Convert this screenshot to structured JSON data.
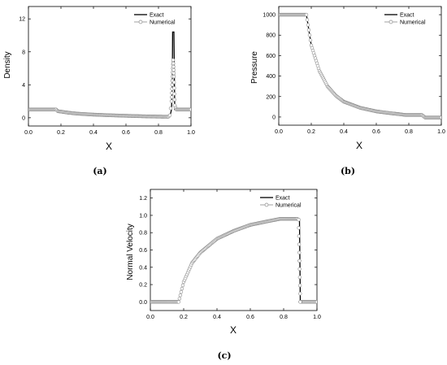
{
  "chart_data": [
    {
      "id": "a",
      "type": "line",
      "caption": "(a)",
      "xlabel": "X",
      "ylabel": "Density",
      "xlim": [
        0.0,
        1.0
      ],
      "ylim": [
        -1,
        13.5
      ],
      "xticks": [
        0.0,
        0.2,
        0.4,
        0.6,
        0.8,
        1.0
      ],
      "xtick_labels": [
        "0.0",
        "0.2",
        "0.4",
        "0.6",
        "0.8",
        "1.0"
      ],
      "yticks": [
        0,
        4,
        8,
        12
      ],
      "ytick_labels": [
        "0",
        "4",
        "8",
        "12"
      ],
      "legend_position": "top-right",
      "series": [
        {
          "name": "Exact",
          "style": "line",
          "x": [
            0.0,
            0.17,
            0.18,
            0.3,
            0.5,
            0.7,
            0.86,
            0.87,
            0.88,
            0.885,
            0.887,
            0.895,
            0.9,
            0.91,
            1.0
          ],
          "y": [
            1.0,
            1.0,
            0.8,
            0.5,
            0.3,
            0.18,
            0.12,
            0.12,
            1.0,
            4.0,
            10.4,
            10.4,
            1.0,
            1.0,
            1.0
          ]
        },
        {
          "name": "Numerical",
          "style": "circles",
          "x": [
            0.0,
            0.17,
            0.18,
            0.25,
            0.3,
            0.4,
            0.5,
            0.6,
            0.7,
            0.8,
            0.86,
            0.87,
            0.88,
            0.89,
            0.895,
            0.9,
            0.91,
            1.0
          ],
          "y": [
            1.0,
            1.0,
            0.8,
            0.6,
            0.5,
            0.38,
            0.3,
            0.24,
            0.18,
            0.14,
            0.12,
            0.3,
            2.0,
            7.0,
            5.0,
            1.5,
            1.0,
            1.0
          ]
        }
      ]
    },
    {
      "id": "b",
      "type": "line",
      "caption": "(b)",
      "xlabel": "X",
      "ylabel": "Pressure",
      "xlim": [
        0.0,
        1.0
      ],
      "ylim": [
        -80,
        1080
      ],
      "xticks": [
        0.0,
        0.2,
        0.4,
        0.6,
        0.8,
        1.0
      ],
      "xtick_labels": [
        "0.0",
        "0.2",
        "0.4",
        "0.6",
        "0.8",
        "1.0"
      ],
      "yticks": [
        0,
        200,
        400,
        600,
        800,
        1000
      ],
      "ytick_labels": [
        "0",
        "200",
        "400",
        "600",
        "800",
        "1000"
      ],
      "legend_position": "top-right",
      "series": [
        {
          "name": "Exact",
          "style": "line",
          "x": [
            0.0,
            0.17,
            0.2,
            0.25,
            0.3,
            0.35,
            0.4,
            0.5,
            0.6,
            0.7,
            0.78,
            0.8,
            0.88,
            0.9,
            1.0
          ],
          "y": [
            1000,
            1000,
            700,
            450,
            300,
            210,
            150,
            90,
            55,
            35,
            20,
            20,
            20,
            -5,
            -5
          ]
        },
        {
          "name": "Numerical",
          "style": "circles",
          "x": [
            0.0,
            0.17,
            0.2,
            0.25,
            0.3,
            0.35,
            0.4,
            0.5,
            0.6,
            0.7,
            0.78,
            0.8,
            0.88,
            0.9,
            1.0
          ],
          "y": [
            1000,
            1000,
            700,
            450,
            300,
            210,
            150,
            90,
            55,
            35,
            20,
            20,
            20,
            -5,
            -5
          ]
        }
      ]
    },
    {
      "id": "c",
      "type": "line",
      "caption": "(c)",
      "xlabel": "X",
      "ylabel": "Normal Velocity",
      "xlim": [
        0.0,
        1.0
      ],
      "ylim": [
        -0.1,
        1.3
      ],
      "xticks": [
        0.0,
        0.2,
        0.4,
        0.6,
        0.8,
        1.0
      ],
      "xtick_labels": [
        "0.0",
        "0.2",
        "0.4",
        "0.6",
        "0.8",
        "1.0"
      ],
      "yticks": [
        0.0,
        0.2,
        0.4,
        0.6,
        0.8,
        1.0,
        1.2
      ],
      "ytick_labels": [
        "0.0",
        "0.2",
        "0.4",
        "0.6",
        "0.8",
        "1.0",
        "1.2"
      ],
      "legend_position": "top-right",
      "series": [
        {
          "name": "Exact",
          "style": "line",
          "x": [
            0.0,
            0.17,
            0.2,
            0.25,
            0.3,
            0.4,
            0.5,
            0.6,
            0.7,
            0.78,
            0.88,
            0.895,
            0.9,
            1.0
          ],
          "y": [
            0.0,
            0.0,
            0.23,
            0.45,
            0.57,
            0.73,
            0.82,
            0.89,
            0.93,
            0.96,
            0.96,
            0.96,
            0.0,
            0.0
          ]
        },
        {
          "name": "Numerical",
          "style": "circles",
          "x": [
            0.0,
            0.17,
            0.2,
            0.25,
            0.3,
            0.4,
            0.5,
            0.6,
            0.7,
            0.78,
            0.88,
            0.89,
            0.9,
            1.0
          ],
          "y": [
            0.0,
            0.0,
            0.23,
            0.45,
            0.57,
            0.73,
            0.82,
            0.89,
            0.93,
            0.96,
            0.96,
            0.95,
            0.0,
            0.0
          ]
        }
      ]
    }
  ]
}
